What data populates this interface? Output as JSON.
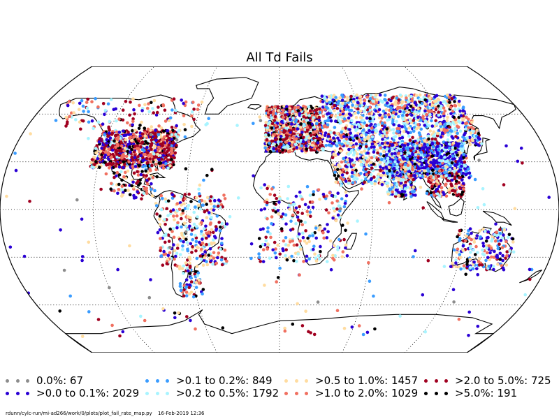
{
  "title": "All Td Fails",
  "legend": [
    {
      "label": "0.0%: 67",
      "color": "#8c8c8c"
    },
    {
      "label": ">0.0 to 0.1%: 2029",
      "color": "#2a00d5"
    },
    {
      "label": ">0.1 to 0.2%: 849",
      "color": "#3a9cff"
    },
    {
      "label": ">0.2 to 0.5%: 1792",
      "color": "#a8f4ff"
    },
    {
      "label": ">0.5 to 1.0%: 1457",
      "color": "#ffdca0"
    },
    {
      "label": ">1.0 to 2.0%: 1029",
      "color": "#f07060"
    },
    {
      "label": ">2.0 to 5.0%: 725",
      "color": "#a00020"
    },
    {
      "label": ">5.0%: 191",
      "color": "#000000"
    }
  ],
  "footer": {
    "path": "rdunn/cylc-run/mi-ad266/work/0/plots/plot_fail_rate_map.py",
    "date": "16-Feb-2019 12:36"
  }
}
